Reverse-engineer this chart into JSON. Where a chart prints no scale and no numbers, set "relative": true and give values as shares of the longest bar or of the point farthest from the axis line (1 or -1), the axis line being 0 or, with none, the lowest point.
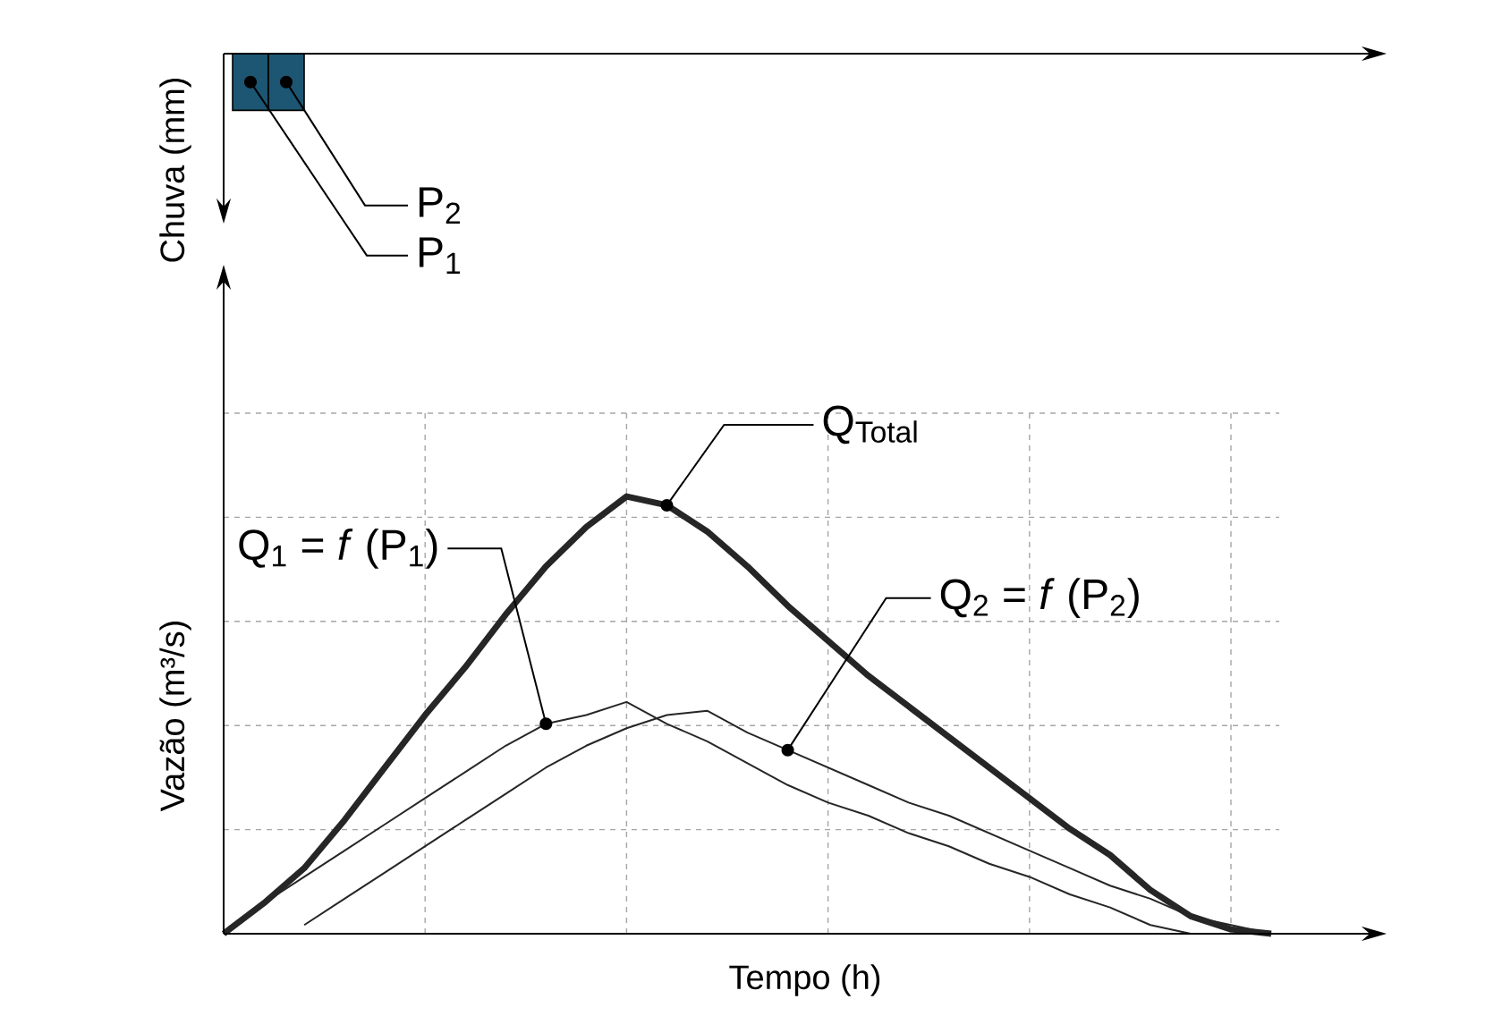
{
  "chart_data": [
    {
      "type": "bar",
      "ylabel": "Chuva (mm)",
      "relative": true,
      "categories": [
        null
      ],
      "series": [
        {
          "name": "P$_{1}$",
          "color": "#1d5672",
          "values": [
            1
          ]
        },
        {
          "name": "P$_{2}$",
          "color": "#1d5672",
          "values": [
            1
          ]
        }
      ]
    },
    {
      "type": "line",
      "xlabel": "Tempo (h)",
      "ylabel": "Vazão (m³/s)",
      "relative": true,
      "grid": true,
      "line_style": "solid",
      "categories": [
        null,
        null,
        null,
        null,
        null,
        null,
        null,
        null,
        null,
        null,
        null,
        null,
        null,
        null,
        null,
        null,
        null,
        null,
        null,
        null,
        null,
        null,
        null,
        null,
        null,
        null,
        null
      ],
      "series": [
        {
          "name": "Q$_{1}$ = *f* (P$_{1}$)",
          "color": "#262626",
          "values": [
            0,
            0.07,
            0.13,
            0.19,
            0.25,
            0.31,
            0.37,
            0.43,
            0.48,
            0.5,
            0.53,
            0.48,
            0.44,
            0.39,
            0.34,
            0.3,
            0.27,
            0.23,
            0.2,
            0.16,
            0.13,
            0.09,
            0.06,
            0.02,
            0,
            null,
            null
          ]
        },
        {
          "name": "Q$_{2}$ = *f* (P$_{2}$)",
          "color": "#262626",
          "values": [
            null,
            null,
            0.02,
            0.08,
            0.14,
            0.2,
            0.26,
            0.32,
            0.38,
            0.43,
            0.47,
            0.5,
            0.51,
            0.46,
            0.42,
            0.38,
            0.34,
            0.3,
            0.27,
            0.23,
            0.19,
            0.15,
            0.11,
            0.08,
            0.04,
            0.02,
            0
          ]
        },
        {
          "name": "Q$_{Total}$",
          "color": "#262626",
          "values": [
            0,
            0.07,
            0.15,
            0.26,
            0.38,
            0.5,
            0.61,
            0.73,
            0.84,
            0.93,
            1.0,
            0.98,
            0.92,
            0.84,
            0.75,
            0.67,
            0.59,
            0.52,
            0.45,
            0.38,
            0.31,
            0.24,
            0.18,
            0.1,
            0.04,
            0.01,
            0
          ]
        }
      ]
    }
  ]
}
